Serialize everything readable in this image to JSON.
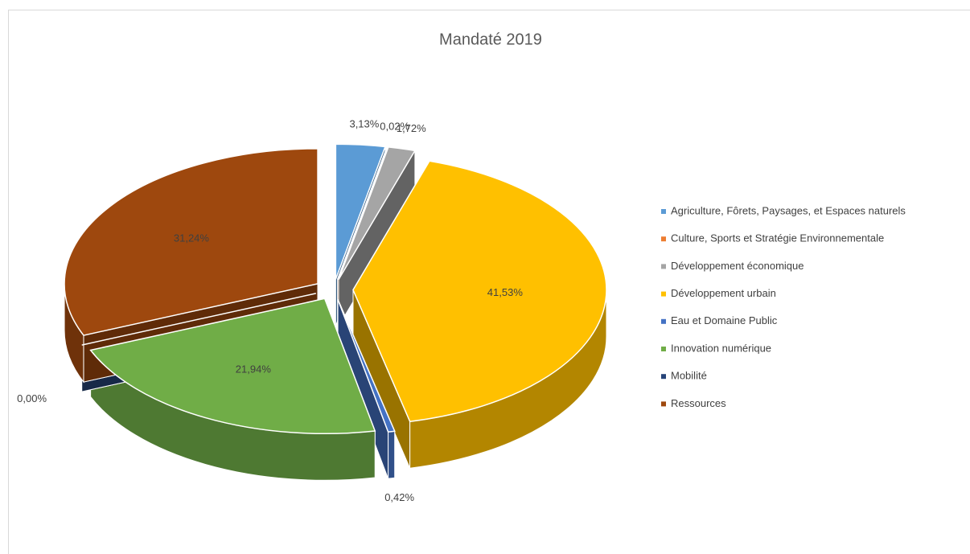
{
  "chart_data": {
    "type": "pie3d",
    "title": "Mandaté 2019",
    "categories": [
      "Agriculture, Fôrets, Paysages, et Espaces naturels",
      "Culture, Sports et Stratégie Environnementale",
      "Développement économique",
      "Développement urbain",
      "Eau et Domaine Public",
      "Innovation numérique",
      "Mobilité",
      "Ressources"
    ],
    "values": [
      3.13,
      0.02,
      1.72,
      41.53,
      0.42,
      21.94,
      0.0,
      31.24
    ],
    "value_labels": [
      "3,13%",
      "0,02%",
      "1,72%",
      "41,53%",
      "0,42%",
      "21,94%",
      "0,00%",
      "31,24%"
    ],
    "colors": [
      "#5b9bd5",
      "#ed7d31",
      "#a5a5a5",
      "#ffc000",
      "#4472c4",
      "#70ad47",
      "#264478",
      "#9e480e"
    ],
    "legend": "right"
  }
}
